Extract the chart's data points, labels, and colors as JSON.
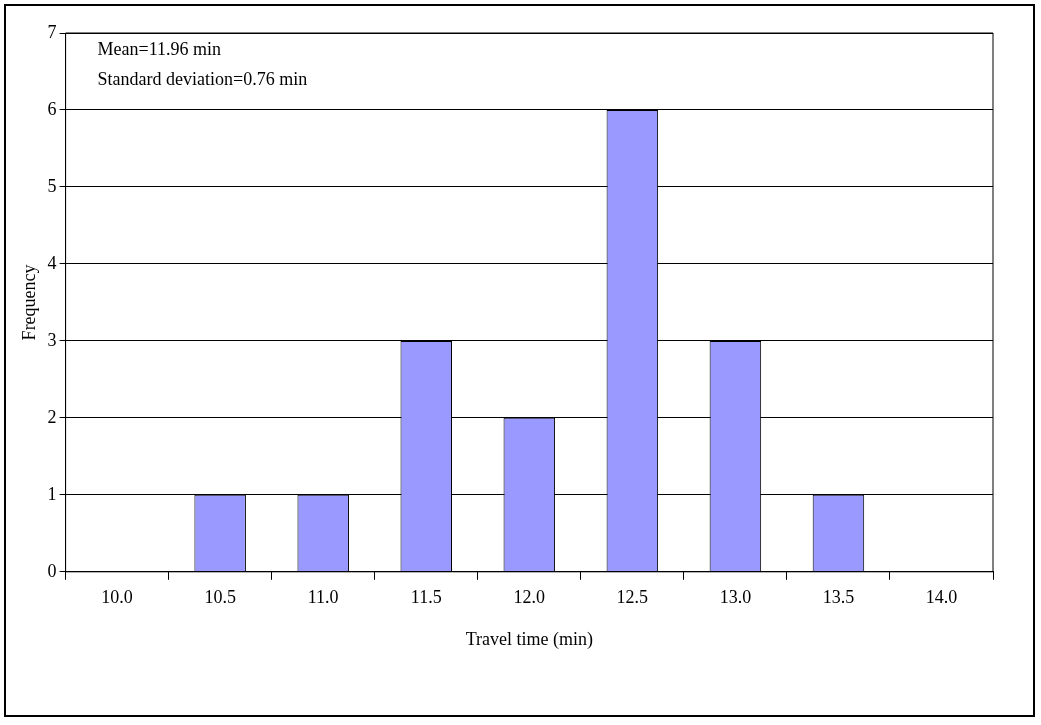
{
  "chart_data": {
    "type": "bar",
    "xlabel": "Travel time (min)",
    "ylabel": "Frequency",
    "categories": [
      "10.0",
      "10.5",
      "11.0",
      "11.5",
      "12.0",
      "12.5",
      "13.0",
      "13.5",
      "14.0"
    ],
    "values": [
      0,
      1,
      1,
      3,
      2,
      6,
      3,
      1,
      0
    ],
    "color": "#9999ff",
    "ylim": [
      0,
      7
    ],
    "yticks": [
      0,
      1,
      2,
      3,
      4,
      5,
      6,
      7
    ],
    "grid": "y",
    "annotations": [
      "Mean=11.96 min",
      "Standard deviation=0.76 min"
    ]
  }
}
